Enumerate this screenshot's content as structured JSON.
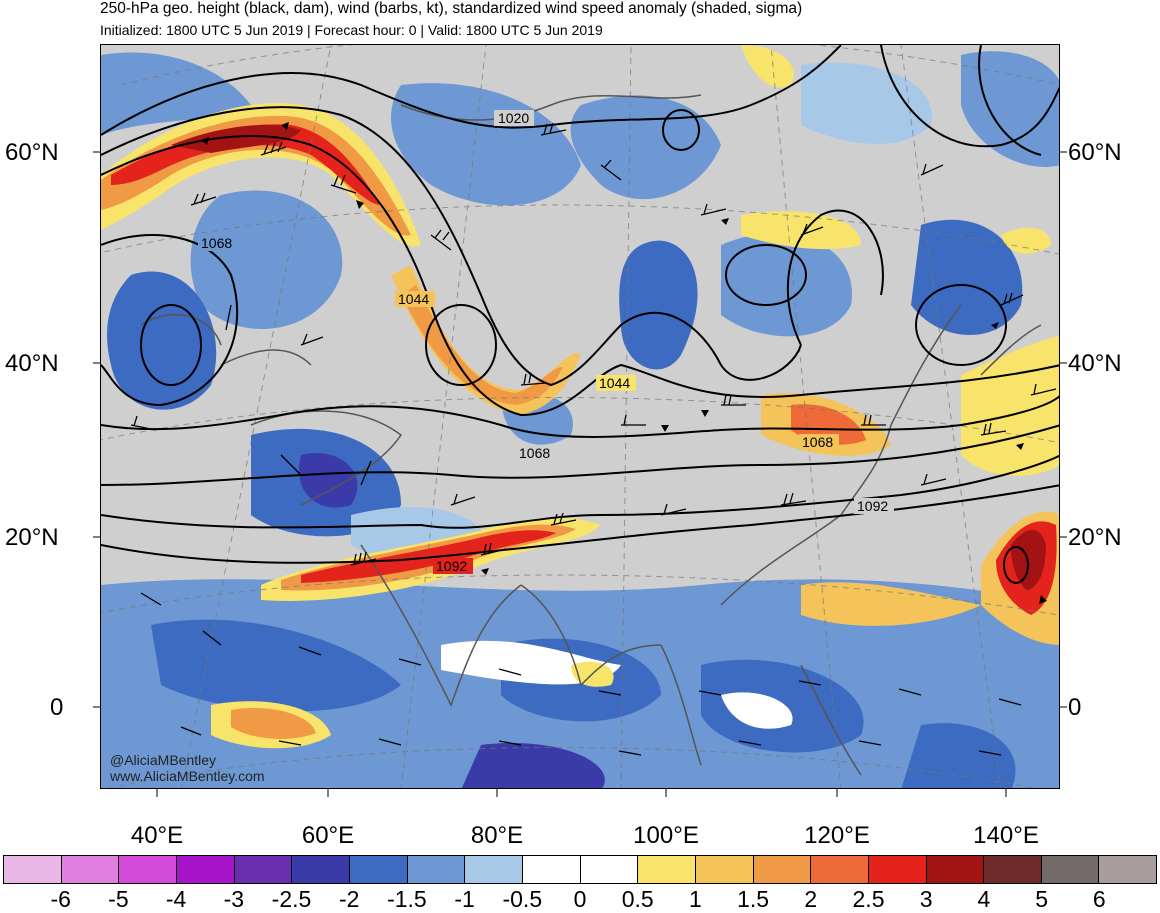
{
  "title": {
    "line1": "250-hPa geo. height (black, dam), wind (barbs, kt), standardized wind speed anomaly (shaded, sigma)",
    "line2": "Initialized: 1800 UTC 5 Jun 2019 | Forecast hour: 0 | Valid: 1800 UTC 5 Jun 2019"
  },
  "map": {
    "latitude_labels": [
      "60°N",
      "40°N",
      "20°N",
      "0"
    ],
    "longitude_labels": [
      "40°E",
      "60°E",
      "80°E",
      "100°E",
      "120°E",
      "140°E"
    ],
    "contour_labels": [
      "1020",
      "1068",
      "1044",
      "1044",
      "1068",
      "1068",
      "1092",
      "1092"
    ],
    "colors": {
      "land_gray": "#cfcfcf",
      "coastline": "#555555",
      "contour": "#000000"
    }
  },
  "credit": {
    "handle": "@AliciaMBentley",
    "website": "www.AliciaMBentley.com"
  },
  "colorbar": {
    "labels": [
      "-6",
      "-5",
      "-4",
      "-3",
      "-2.5",
      "-2",
      "-1.5",
      "-1",
      "-0.5",
      "0",
      "0.5",
      "1",
      "1.5",
      "2",
      "2.5",
      "3",
      "4",
      "5",
      "6"
    ],
    "colors": [
      "#e9b8e6",
      "#e07fe0",
      "#d34bd8",
      "#a814c9",
      "#6a2fb0",
      "#3a3aa8",
      "#3d6bc1",
      "#6d98d3",
      "#a8c8e8",
      "#ffffff",
      "#ffffff",
      "#f8e46a",
      "#f4c45a",
      "#f09a45",
      "#ee6a38",
      "#e4231d",
      "#a41313",
      "#6f2a2a",
      "#736a6a",
      "#a89c9c"
    ]
  }
}
